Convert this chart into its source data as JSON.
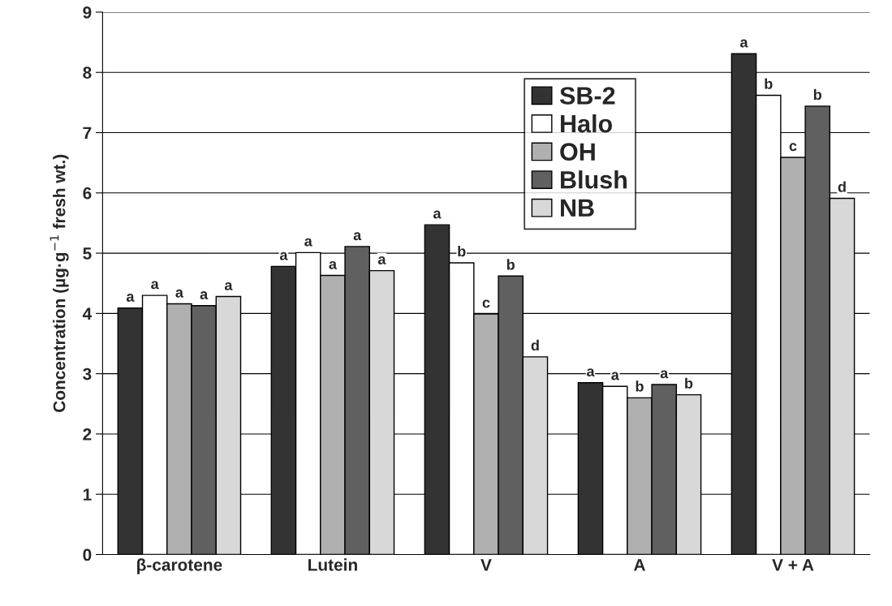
{
  "chart_data": {
    "type": "bar",
    "ylabel": "Concentration (µg·g$^{−1}$ fresh wt.)",
    "categories": [
      "β-carotene",
      "Lutein",
      "V",
      "A",
      "V + A"
    ],
    "series": [
      {
        "name": "SB-2",
        "color": "#333333",
        "values": [
          4.09,
          4.78,
          5.47,
          2.85,
          8.31
        ],
        "value_labels": [
          "a",
          "a",
          "a",
          "a",
          "a"
        ]
      },
      {
        "name": "Halo",
        "color": "#ffffff",
        "values": [
          4.3,
          5.01,
          4.84,
          2.79,
          7.62
        ],
        "value_labels": [
          "a",
          "a",
          "b",
          "a",
          "b"
        ]
      },
      {
        "name": "OH",
        "color": "#b0b0b0",
        "values": [
          4.16,
          4.63,
          3.99,
          2.6,
          6.59
        ],
        "value_labels": [
          "a",
          "a",
          "c",
          "b",
          "c"
        ]
      },
      {
        "name": "Blush",
        "color": "#606060",
        "values": [
          4.13,
          5.11,
          4.62,
          2.82,
          7.44
        ],
        "value_labels": [
          "a",
          "a",
          "b",
          "a",
          "b"
        ]
      },
      {
        "name": "NB",
        "color": "#d8d8d8",
        "values": [
          4.28,
          4.71,
          3.28,
          2.65,
          5.91
        ],
        "value_labels": [
          "a",
          "a",
          "d",
          "b",
          "d"
        ]
      }
    ],
    "ylim": [
      0,
      9
    ],
    "yticks": [
      0,
      1,
      2,
      3,
      4,
      5,
      6,
      7,
      8,
      9
    ],
    "grid": "y",
    "legend": "top right"
  }
}
